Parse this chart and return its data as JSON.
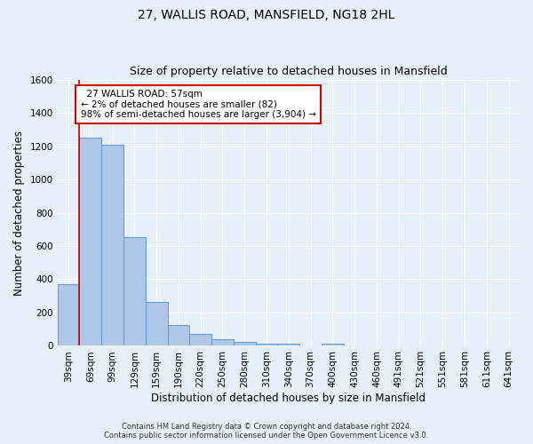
{
  "title": "27, WALLIS ROAD, MANSFIELD, NG18 2HL",
  "subtitle": "Size of property relative to detached houses in Mansfield",
  "xlabel": "Distribution of detached houses by size in Mansfield",
  "ylabel": "Number of detached properties",
  "footer_line1": "Contains HM Land Registry data © Crown copyright and database right 2024.",
  "footer_line2": "Contains public sector information licensed under the Open Government Licence v3.0.",
  "bar_labels": [
    "39sqm",
    "69sqm",
    "99sqm",
    "129sqm",
    "159sqm",
    "190sqm",
    "220sqm",
    "250sqm",
    "280sqm",
    "310sqm",
    "340sqm",
    "370sqm",
    "400sqm",
    "430sqm",
    "460sqm",
    "491sqm",
    "521sqm",
    "551sqm",
    "581sqm",
    "611sqm",
    "641sqm"
  ],
  "bar_values": [
    370,
    1250,
    1210,
    655,
    265,
    125,
    70,
    38,
    25,
    15,
    12,
    5,
    12,
    0,
    0,
    0,
    0,
    0,
    0,
    0,
    0
  ],
  "bar_color": "#aec6e8",
  "bar_edge_color": "#5b9bd5",
  "bar_width": 1.0,
  "ylim": [
    0,
    1600
  ],
  "yticks": [
    0,
    200,
    400,
    600,
    800,
    1000,
    1200,
    1400,
    1600
  ],
  "red_line_x": 0.48,
  "annotation_text": "  27 WALLIS ROAD: 57sqm\n← 2% of detached houses are smaller (82)\n98% of semi-detached houses are larger (3,904) →",
  "annotation_box_color": "#ffffff",
  "annotation_box_edge_color": "#cc0000",
  "background_color": "#e8f0fa",
  "grid_color": "#ffffff",
  "title_fontsize": 10,
  "subtitle_fontsize": 9,
  "axis_label_fontsize": 8.5,
  "tick_fontsize": 7.5,
  "annotation_fontsize": 7.5,
  "footer_fontsize": 6.0
}
